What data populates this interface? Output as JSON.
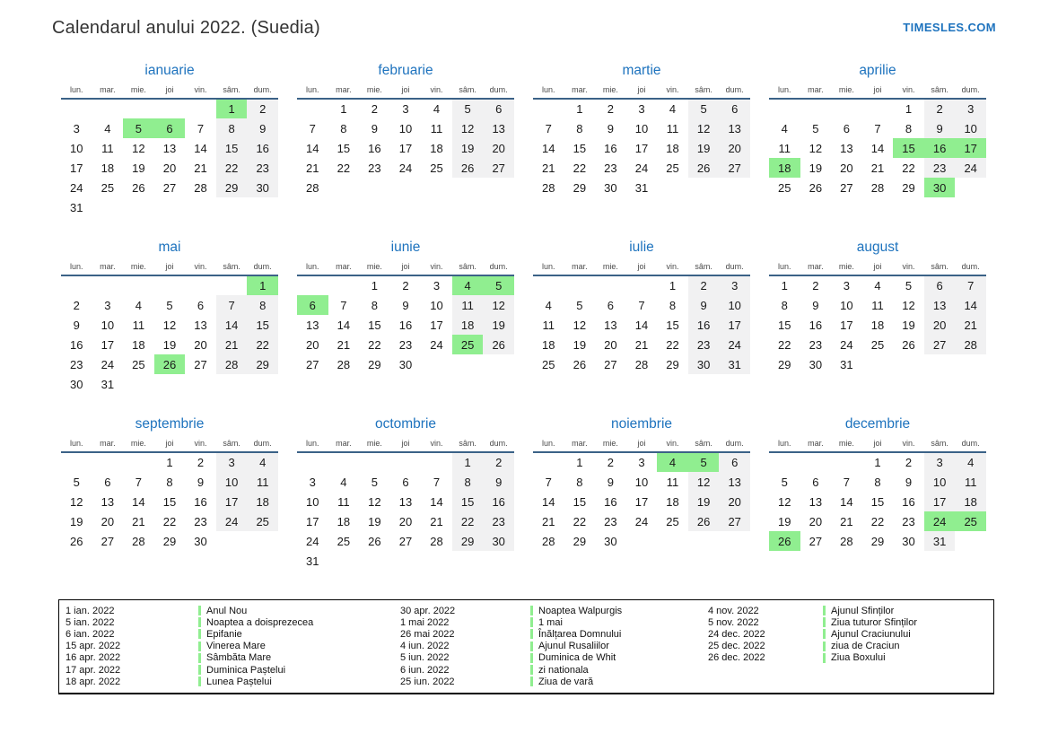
{
  "page": {
    "title": "Calendarul anului 2022. (Suedia)",
    "site": "TIMESLES.COM"
  },
  "colors": {
    "accent_blue": "#1e73be",
    "header_line": "#3b6287",
    "holiday_green": "#90ee90",
    "weekend_gray": "#f1f1f2"
  },
  "weekdays": [
    "lun.",
    "mar.",
    "mie.",
    "joi",
    "vin.",
    "sâm.",
    "dum."
  ],
  "months": [
    {
      "name": "ianuarie",
      "start": 5,
      "days": 31,
      "holidays": [
        1,
        5,
        6
      ]
    },
    {
      "name": "februarie",
      "start": 1,
      "days": 28,
      "holidays": []
    },
    {
      "name": "martie",
      "start": 1,
      "days": 31,
      "holidays": []
    },
    {
      "name": "aprilie",
      "start": 4,
      "days": 30,
      "holidays": [
        15,
        16,
        17,
        18,
        30
      ]
    },
    {
      "name": "mai",
      "start": 6,
      "days": 31,
      "holidays": [
        1,
        26
      ]
    },
    {
      "name": "iunie",
      "start": 2,
      "days": 30,
      "holidays": [
        4,
        5,
        6,
        25
      ]
    },
    {
      "name": "iulie",
      "start": 4,
      "days": 31,
      "holidays": []
    },
    {
      "name": "august",
      "start": 0,
      "days": 31,
      "holidays": []
    },
    {
      "name": "septembrie",
      "start": 3,
      "days": 30,
      "holidays": []
    },
    {
      "name": "octombrie",
      "start": 5,
      "days": 31,
      "holidays": []
    },
    {
      "name": "noiembrie",
      "start": 1,
      "days": 30,
      "holidays": [
        4,
        5
      ]
    },
    {
      "name": "decembrie",
      "start": 3,
      "days": 31,
      "holidays": [
        24,
        25,
        26
      ]
    }
  ],
  "legend": {
    "groups": [
      [
        {
          "date": "1 ian. 2022",
          "name": "Anul Nou"
        },
        {
          "date": "5 ian. 2022",
          "name": "Noaptea a doisprezecea"
        },
        {
          "date": "6 ian. 2022",
          "name": "Epifanie"
        },
        {
          "date": "15 apr. 2022",
          "name": "Vinerea Mare"
        },
        {
          "date": "16 apr. 2022",
          "name": "Sâmbăta Mare"
        },
        {
          "date": "17 apr. 2022",
          "name": "Duminica Paștelui"
        },
        {
          "date": "18 apr. 2022",
          "name": "Lunea Paștelui"
        }
      ],
      [
        {
          "date": "30 apr. 2022",
          "name": "Noaptea Walpurgis"
        },
        {
          "date": "1 mai 2022",
          "name": "1 mai"
        },
        {
          "date": "26 mai 2022",
          "name": "Înălțarea Domnului"
        },
        {
          "date": "4 iun. 2022",
          "name": "Ajunul Rusaliilor"
        },
        {
          "date": "5 iun. 2022",
          "name": "Duminica de Whit"
        },
        {
          "date": "6 iun. 2022",
          "name": "zi nationala"
        },
        {
          "date": "25 iun. 2022",
          "name": "Ziua de vară"
        }
      ],
      [
        {
          "date": "4 nov. 2022",
          "name": "Ajunul Sfinților"
        },
        {
          "date": "5 nov. 2022",
          "name": "Ziua tuturor Sfinților"
        },
        {
          "date": "24 dec. 2022",
          "name": "Ajunul Craciunului"
        },
        {
          "date": "25 dec. 2022",
          "name": "ziua de Craciun"
        },
        {
          "date": "26 dec. 2022",
          "name": "Ziua Boxului"
        }
      ]
    ]
  }
}
